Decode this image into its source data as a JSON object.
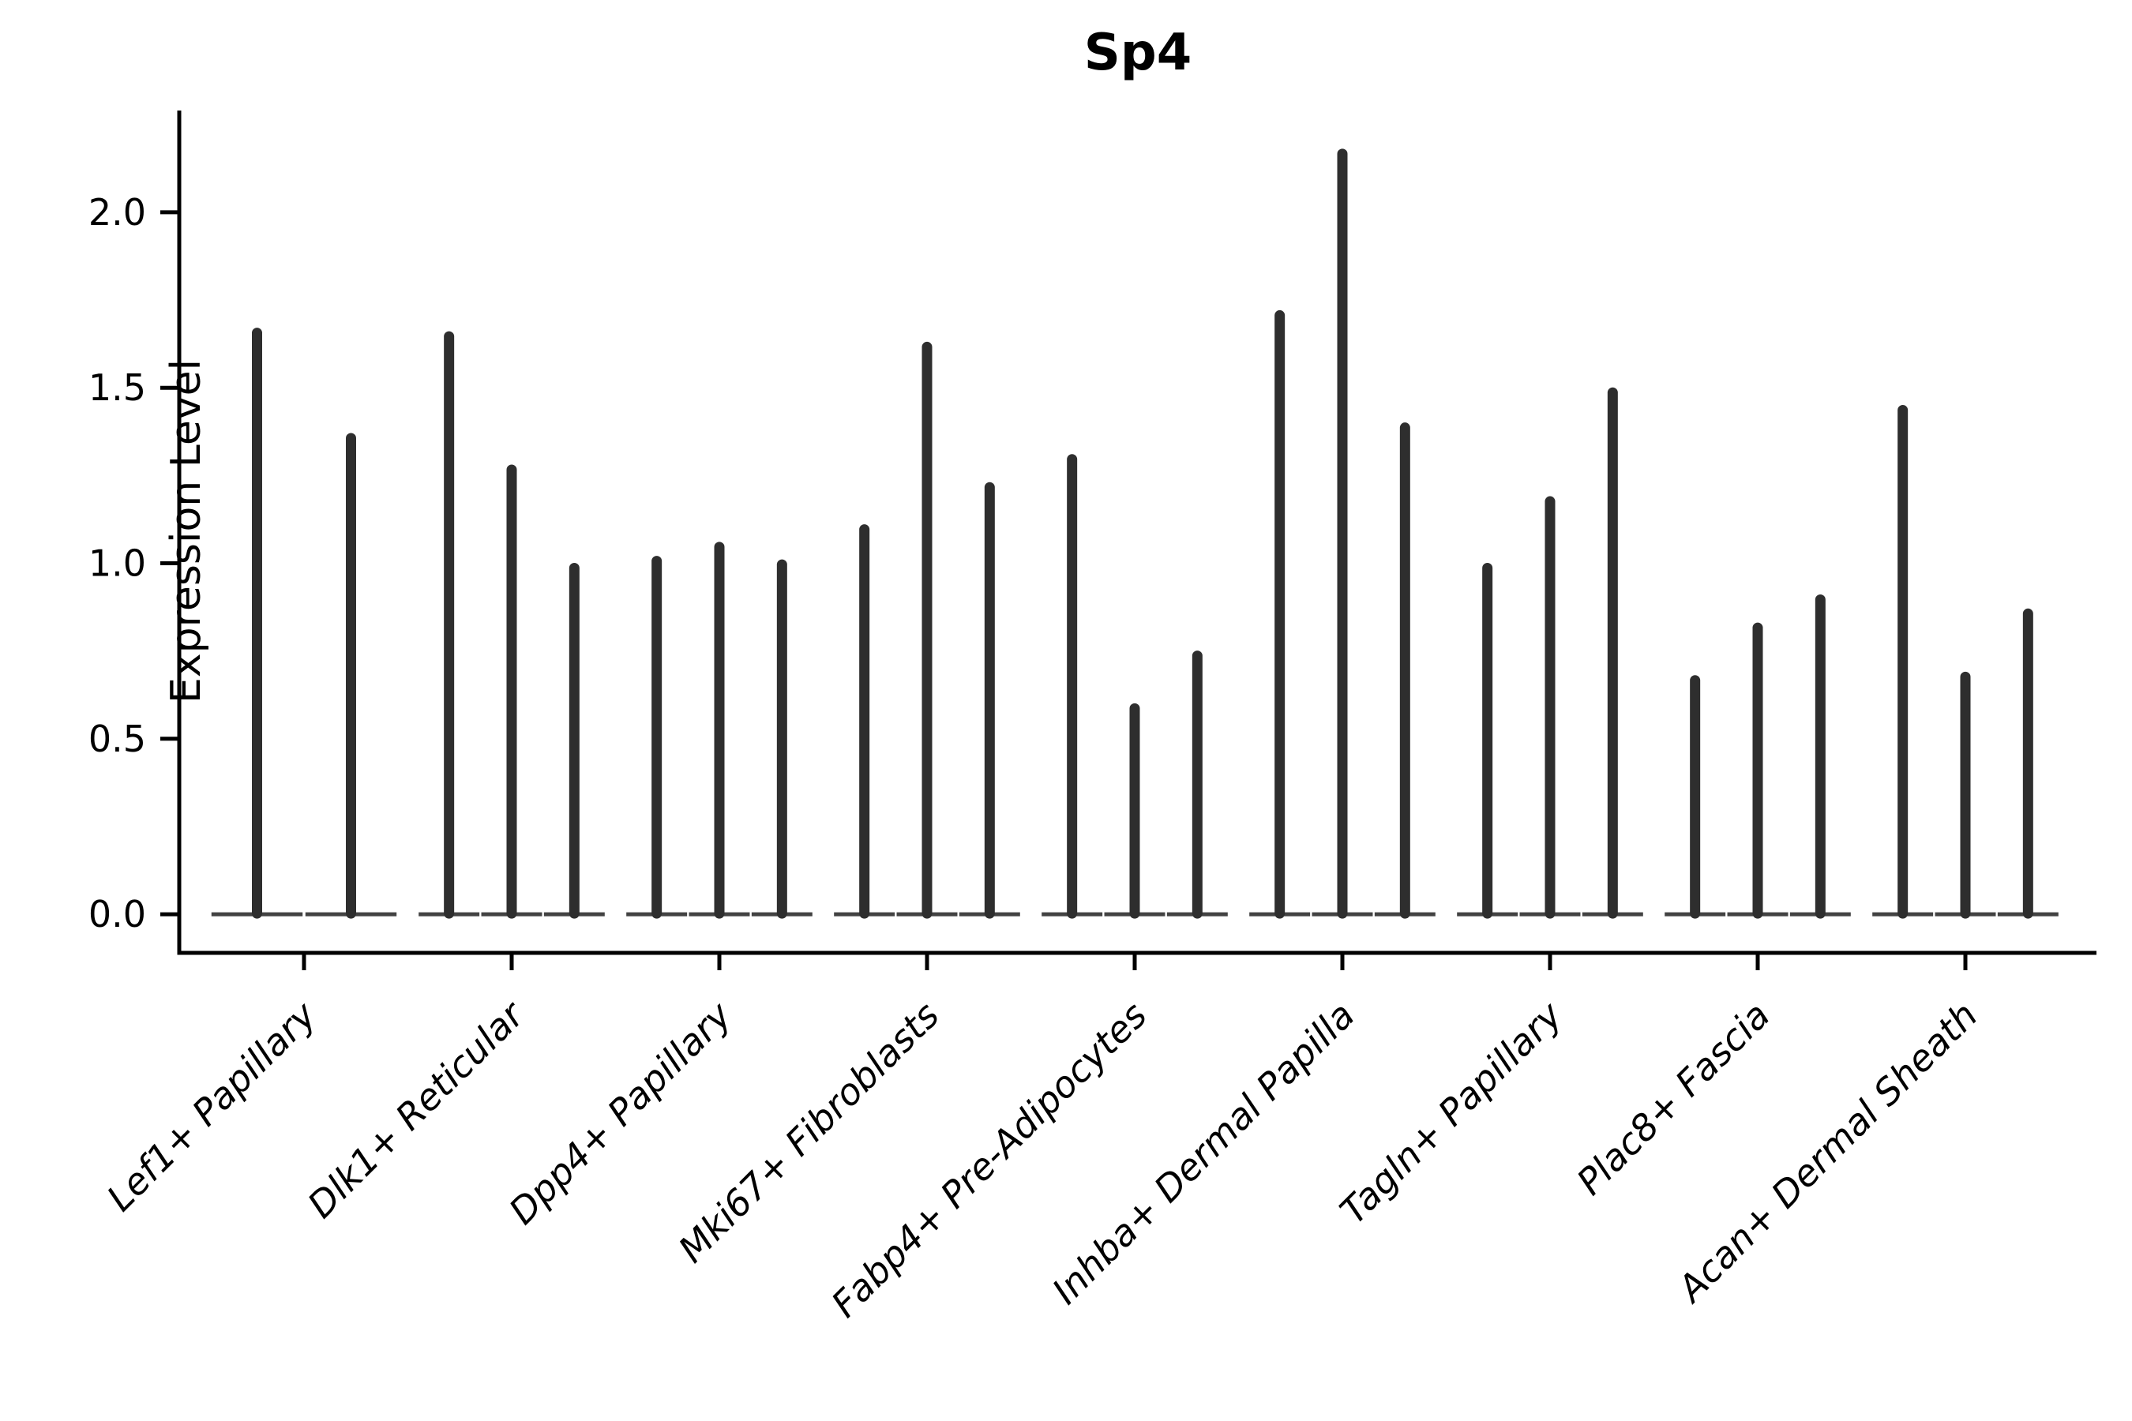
{
  "chart_data": {
    "type": "violin",
    "title": "Sp4",
    "ylabel": "Expression Level",
    "xlabel": "",
    "grid": false,
    "legend": "none",
    "background": "#ffffff",
    "colors": {
      "violin": "#2e2e2e",
      "axis": "#000000",
      "text": "#000000"
    },
    "ylim": [
      -0.11,
      2.29
    ],
    "ytick_values": [
      0.0,
      0.5,
      1.0,
      1.5,
      2.0
    ],
    "ytick_labels": [
      "0.0",
      "0.5",
      "1.0",
      "1.5",
      "2.0"
    ],
    "categories": [
      "Lef1+ Papillary",
      "Dlk1+ Reticular",
      "Dpp4+ Papillary",
      "Mki67+ Fibroblasts",
      "Fabp4+ Pre-Adipocytes",
      "Inhba+ Dermal Papilla",
      "Tagln+ Papillary",
      "Plac8+ Fascia",
      "Acan+ Dermal Sheath"
    ],
    "groups": [
      {
        "label": "Lef1+ Papillary",
        "violin_max_values": [
          1.67,
          1.37
        ]
      },
      {
        "label": "Dlk1+ Reticular",
        "violin_max_values": [
          1.66,
          1.28,
          1.0
        ]
      },
      {
        "label": "Dpp4+ Papillary",
        "violin_max_values": [
          1.02,
          1.06,
          1.01
        ]
      },
      {
        "label": "Mki67+ Fibroblasts",
        "violin_max_values": [
          1.11,
          1.63,
          1.23
        ]
      },
      {
        "label": "Fabp4+ Pre-Adipocytes",
        "violin_max_values": [
          1.31,
          0.6,
          0.75
        ]
      },
      {
        "label": "Inhba+ Dermal Papilla",
        "violin_max_values": [
          1.72,
          2.18,
          1.4
        ]
      },
      {
        "label": "Tagln+ Papillary",
        "violin_max_values": [
          1.0,
          1.19,
          1.5
        ]
      },
      {
        "label": "Plac8+ Fascia",
        "violin_max_values": [
          0.68,
          0.83,
          0.91
        ]
      },
      {
        "label": "Acan+ Dermal Sheath",
        "violin_max_values": [
          1.45,
          0.69,
          0.87
        ]
      }
    ],
    "violin_shape_note": "each violin is collapsed at 0 (wide flat base) with a thin spike up to its max value"
  }
}
